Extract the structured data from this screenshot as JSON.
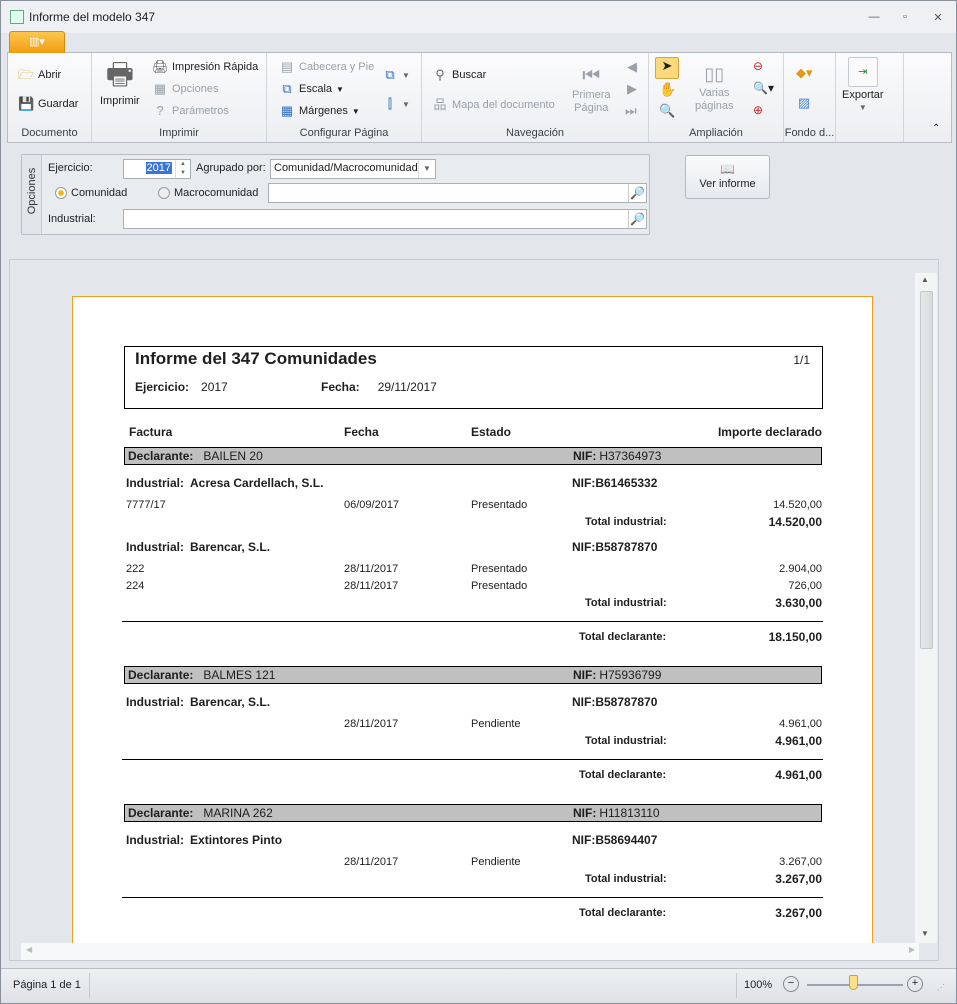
{
  "window": {
    "title": "Informe del modelo 347"
  },
  "ribbon": {
    "groups": {
      "documento": "Documento",
      "imprimir": "Imprimir",
      "configurar": "Configurar Página",
      "navegacion": "Navegación",
      "ampliacion": "Ampliación",
      "fondo": "Fondo d...",
      "exportar": ""
    },
    "abrir": "Abrir",
    "guardar": "Guardar",
    "imprimir": "Imprimir",
    "impresion_rapida": "Impresión Rápida",
    "opciones": "Opciones",
    "parametros": "Parámetros",
    "cabecera": "Cabecera y Pie",
    "escala": "Escala",
    "margenes": "Márgenes",
    "buscar": "Buscar",
    "mapa": "Mapa del documento",
    "primera": "Primera",
    "pagina": "Página",
    "varias": "Varias",
    "paginas": "páginas",
    "exportar": "Exportar"
  },
  "options": {
    "panel_label": "Opciones",
    "ejercicio_label": "Ejercicio:",
    "ejercicio_value": "2017",
    "agrupado_label": "Agrupado por:",
    "agrupado_value": "Comunidad/Macrocomunidad",
    "radio_comunidad": "Comunidad",
    "radio_macro": "Macrocomunidad",
    "radio_selected": "Comunidad",
    "industrial_label": "Industrial:",
    "ver_informe": "Ver informe"
  },
  "report": {
    "title": "Informe del 347 Comunidades",
    "page": "1/1",
    "ejercicio_label": "Ejercicio:",
    "ejercicio": "2017",
    "fecha_label": "Fecha:",
    "fecha": "29/11/2017",
    "columns": [
      "Factura",
      "Fecha",
      "Estado",
      "Importe declarado"
    ],
    "declarante_label": "Declarante:",
    "nif_label": "NIF:",
    "industrial_label": "Industrial:",
    "total_industrial_label": "Total industrial:",
    "total_declarante_label": "Total declarante:",
    "declarantes": [
      {
        "name": "BAILEN 20",
        "nif": "H37364973",
        "total": "18.150,00",
        "industriales": [
          {
            "name": "Acresa Cardellach, S.L.",
            "nif": "B61465332",
            "total": "14.520,00",
            "lines": [
              {
                "factura": "7777/17",
                "fecha": "06/09/2017",
                "estado": "Presentado",
                "importe": "14.520,00"
              }
            ]
          },
          {
            "name": "Barencar, S.L.",
            "nif": "B58787870",
            "total": "3.630,00",
            "lines": [
              {
                "factura": "222",
                "fecha": "28/11/2017",
                "estado": "Presentado",
                "importe": "2.904,00"
              },
              {
                "factura": "224",
                "fecha": "28/11/2017",
                "estado": "Presentado",
                "importe": "726,00"
              }
            ]
          }
        ]
      },
      {
        "name": "BALMES 121",
        "nif": "H75936799",
        "total": "4.961,00",
        "industriales": [
          {
            "name": "Barencar, S.L.",
            "nif": "B58787870",
            "total": "4.961,00",
            "lines": [
              {
                "factura": "",
                "fecha": "28/11/2017",
                "estado": "Pendiente",
                "importe": "4.961,00"
              }
            ]
          }
        ]
      },
      {
        "name": "MARINA 262",
        "nif": "H11813110",
        "total": "3.267,00",
        "industriales": [
          {
            "name": "Extintores Pinto",
            "nif": "B58694407",
            "total": "3.267,00",
            "lines": [
              {
                "factura": "",
                "fecha": "28/11/2017",
                "estado": "Pendiente",
                "importe": "3.267,00"
              }
            ]
          }
        ]
      }
    ]
  },
  "status": {
    "page": "Página 1 de 1",
    "zoom": "100%",
    "zoom_level": 100
  },
  "colors": {
    "accent": "#f29c0f",
    "declarante_bar": "#c0c0c0"
  }
}
